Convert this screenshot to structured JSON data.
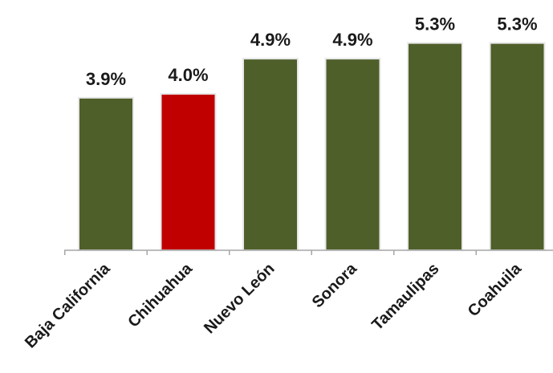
{
  "chart_data": {
    "type": "bar",
    "categories": [
      "Baja California",
      "Chihuahua",
      "Nuevo León",
      "Sonora",
      "Tamaulipas",
      "Coahuila"
    ],
    "values": [
      3.9,
      4.0,
      4.9,
      4.9,
      5.3,
      5.3
    ],
    "value_labels": [
      "3.9%",
      "4.0%",
      "4.9%",
      "4.9%",
      "5.3%",
      "5.3%"
    ],
    "ylim": [
      0,
      6.4
    ],
    "grid": false,
    "legend": "none",
    "colors": {
      "default_bar": "#4f5f2a",
      "highlight_bar": "#c00000",
      "highlight_category": "Chihuahua",
      "axis": "#a6a6a6"
    }
  }
}
